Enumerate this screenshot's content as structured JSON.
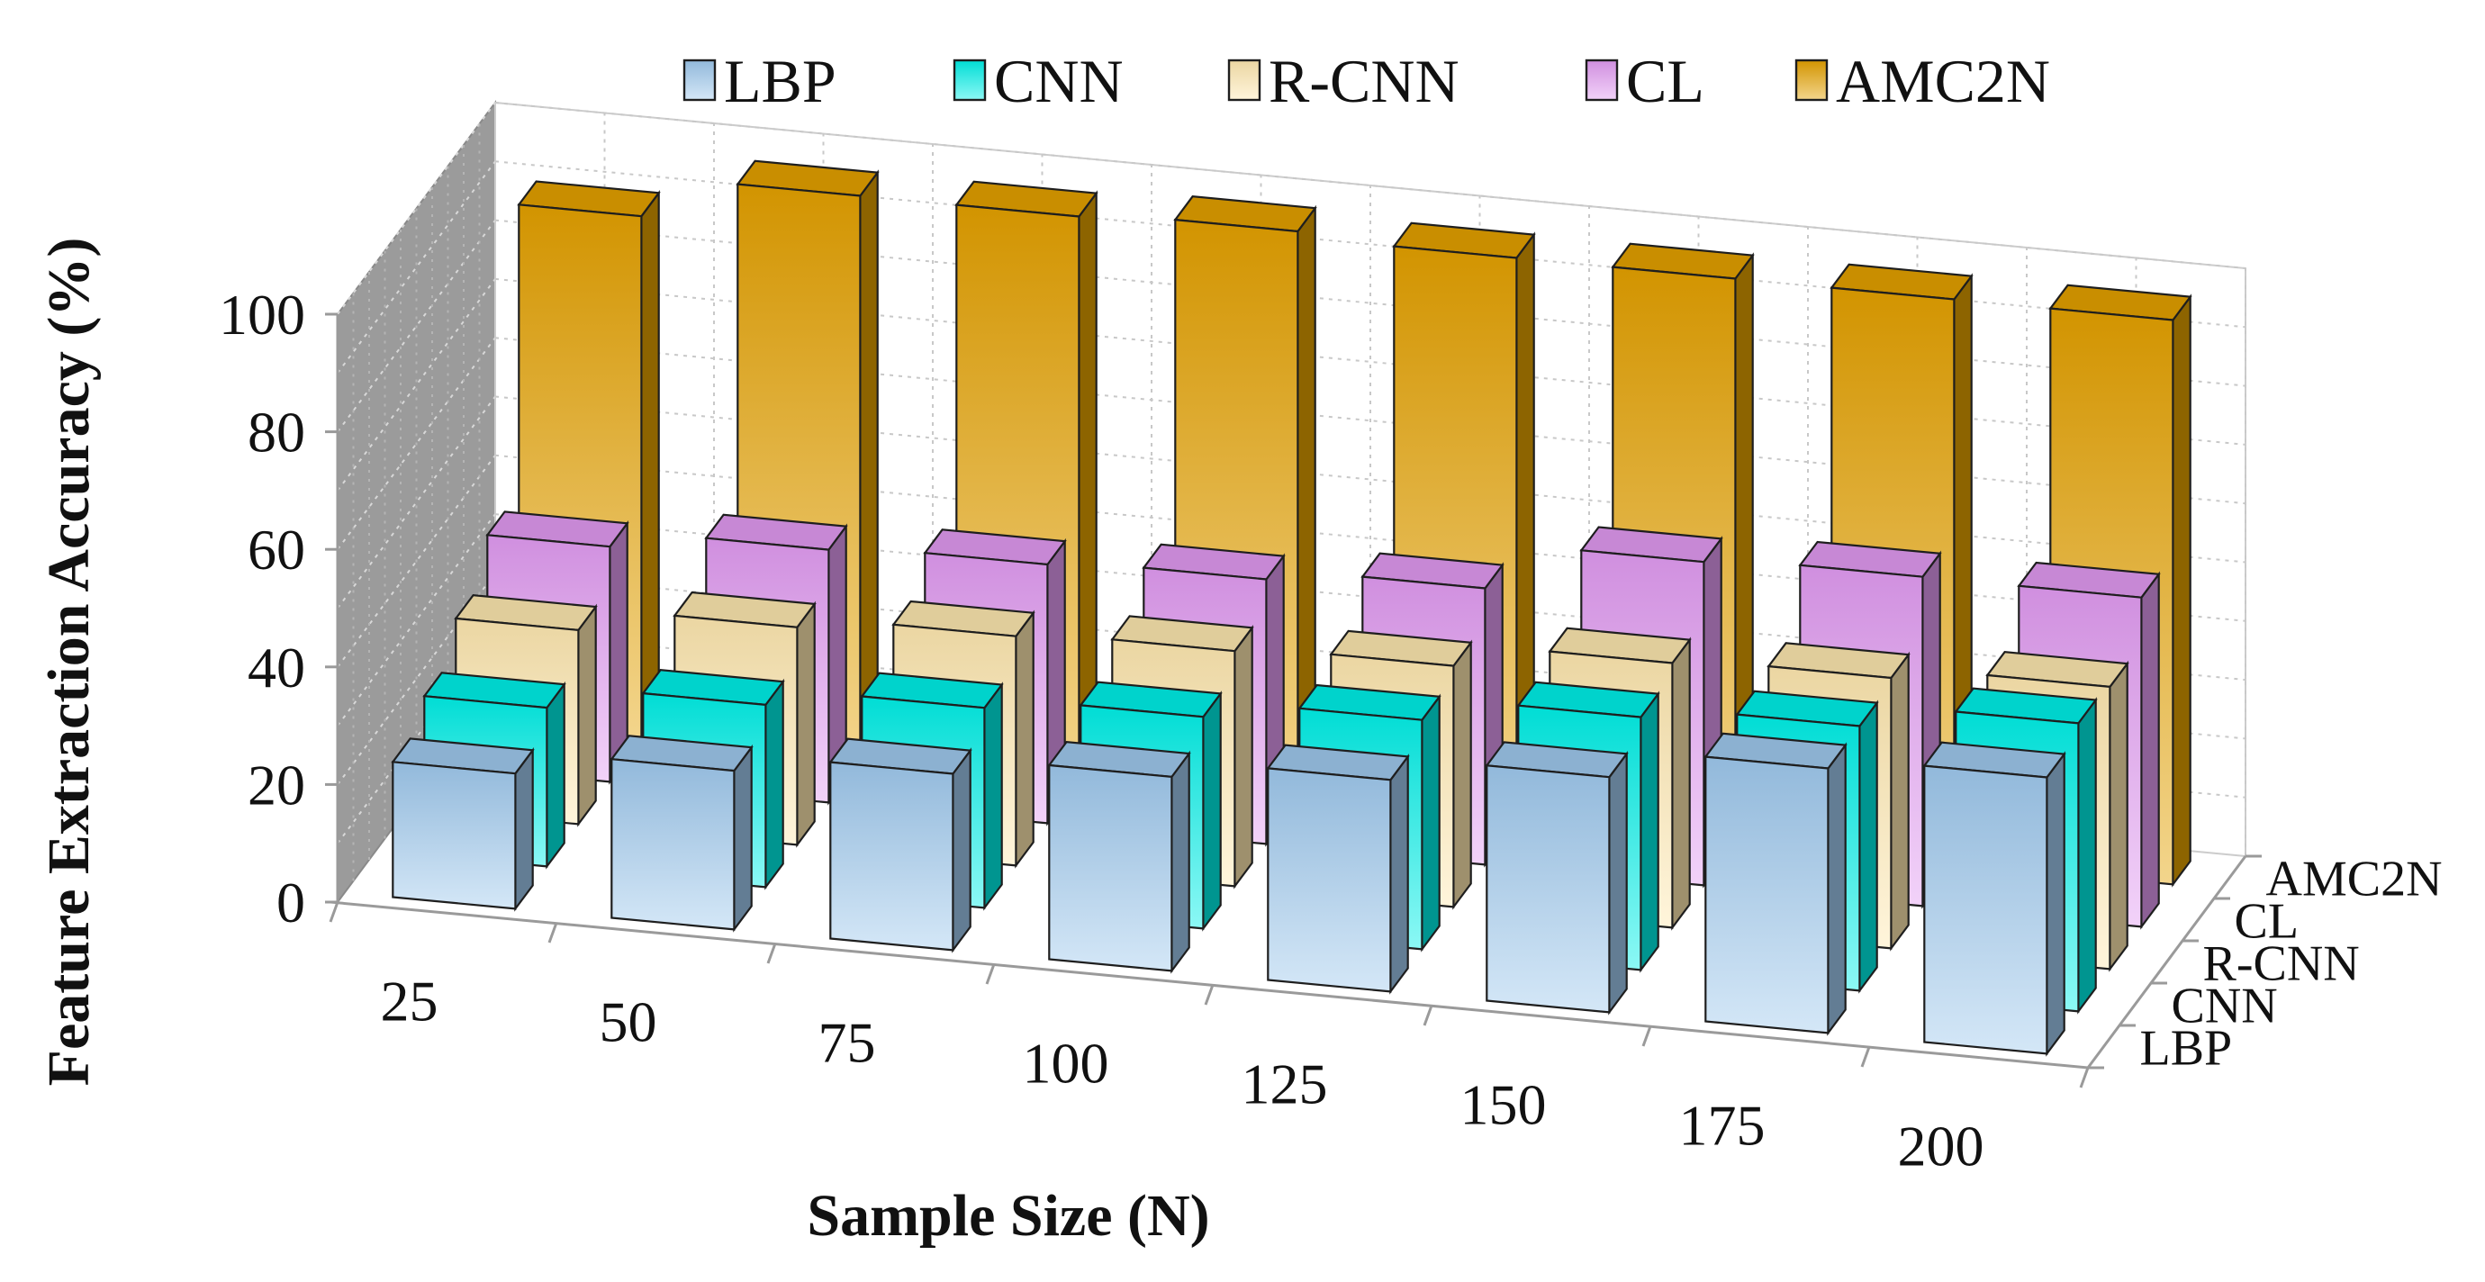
{
  "chart_data": {
    "type": "bar",
    "subtype": "3d-column",
    "categories": [
      "25",
      "50",
      "75",
      "100",
      "125",
      "150",
      "175",
      "200"
    ],
    "series": [
      {
        "name": "LBP",
        "values": [
          23,
          27,
          30,
          33,
          36,
          40,
          45,
          47
        ],
        "color": "#9FC9EE"
      },
      {
        "name": "CNN",
        "values": [
          27,
          31,
          34,
          36,
          39,
          43,
          45,
          49
        ],
        "color": "#00F0E8"
      },
      {
        "name": "R-CNN",
        "values": [
          33,
          37,
          39,
          40,
          41,
          45,
          46,
          48
        ],
        "color": "#FFE9B0"
      },
      {
        "name": "CL",
        "values": [
          40,
          43,
          44,
          45,
          47,
          55,
          56,
          56
        ],
        "color": "#E29BF2"
      },
      {
        "name": "AMC2N",
        "values": [
          89,
          96,
          96,
          97,
          96,
          96,
          96,
          96
        ],
        "color": "#E4A100"
      }
    ],
    "title": "",
    "xlabel": "Sample Size (N)",
    "ylabel": "Feature Extraction Accuracy (%)",
    "ylim": [
      0,
      100
    ],
    "yticks": [
      "0",
      "20",
      "40",
      "60",
      "80",
      "100"
    ],
    "legend_position": "top",
    "grid": true
  }
}
